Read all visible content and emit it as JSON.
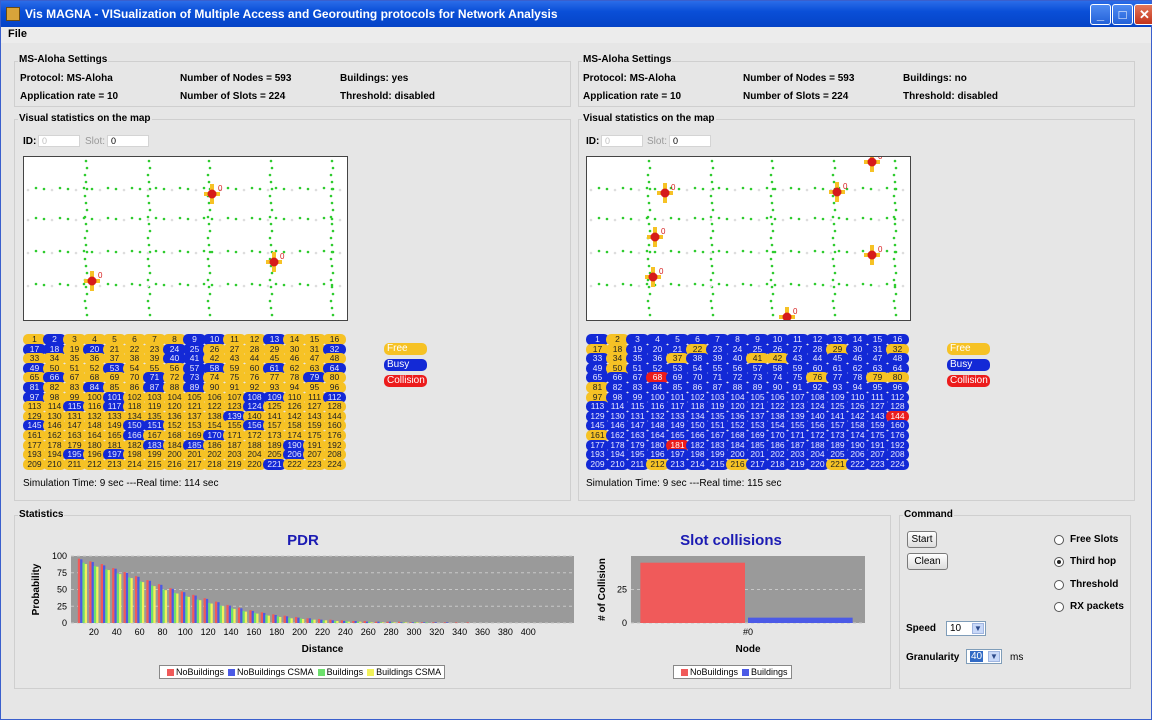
{
  "window": {
    "title": "Vis MAGNA - VISualization of Multiple Access and Georouting protocols for Network Analysis",
    "minimize_glyph": "_",
    "maximize_glyph": "□",
    "close_glyph": "✕"
  },
  "menu": {
    "file": "File"
  },
  "left": {
    "settings_title": "MS-Aloha Settings",
    "protocol": "Protocol: MS-Aloha",
    "nodes": "Number of Nodes = 593",
    "buildings": "Buildings: yes",
    "app_rate": "Application rate = 10",
    "slots": "Number of Slots = 224",
    "threshold": "Threshold: disabled",
    "visual_title": "Visual statistics on the map",
    "id_label": "ID:",
    "id_value": "0",
    "slot_label": "Slot:",
    "slot_value": "0",
    "sim_time": "Simulation Time: 9 sec ---Real time: 114 sec"
  },
  "right": {
    "settings_title": "MS-Aloha Settings",
    "protocol": "Protocol: MS-Aloha",
    "nodes": "Number of Nodes = 593",
    "buildings": "Buildings: no",
    "app_rate": "Application rate = 10",
    "slots": "Number of Slots = 224",
    "threshold": "Threshold: disabled",
    "visual_title": "Visual statistics on the map",
    "id_label": "ID:",
    "id_value": "0",
    "slot_label": "Slot:",
    "slot_value": "0",
    "sim_time": "Simulation Time: 9 sec ---Real time: 115 sec"
  },
  "slot_legend": {
    "free": "Free",
    "busy": "Busy",
    "collision": "Collision"
  },
  "slot_grid": {
    "count": 224,
    "left_states": "FBFFFFFFBBFFBFFFBBFBFFFBBFFFFFFBFFFFFFFBBFFFFFFFBFFFBFFFBBFFBFFBFBFFFFBFBFFFFFBFBFFBFFBFBFFFFFFFBFFFBFFFFFFBBFFBFFBFBFFFFFFBFFFFFFFFFFFFFFBFFFFFBFFFFBBFFFFBFFFFFFFFFBFFFBFFFFFFFFFFFFBFBFFFFBFFFFBFBFFFFFFFFBFFFFFFFFFFFFFFBFFFFFFFBBFBBFF",
    "right_states": "BFBBBBBBBBBBBBBBFFBBBFBBBBBBFBBFBFBBFBBBFFBBBBBBBFBBBBBBBBBBBBBBBBBCBBBBBBBFBBFFFBBBBBBBBBBBBBBBFBBBBBBBBBBBBBBBBBBBBBBBBBBBBBBBBBBBBBBBBBBBBBBCBBBBBBBBBBBBBBBBFBBBBBBBBBBBBBBBBBBBCBBBBBBBBBBBBBBBBBBBBBBBBBBBBBBFBBBFBBBBFBBBBBBBB"
  },
  "statistics": {
    "title": "Statistics",
    "pdr": {
      "title": "PDR",
      "ylabel": "Probability",
      "xlabel": "Distance",
      "legend": [
        "NoBuildings",
        "NoBuildings CSMA",
        "Buildings",
        "Buildings CSMA"
      ]
    },
    "collisions": {
      "title": "Slot collisions",
      "ylabel": "# of Collision",
      "xlabel": "Node",
      "legend": [
        "NoBuildings",
        "Buildings"
      ]
    }
  },
  "command": {
    "title": "Command",
    "start": "Start",
    "clean": "Clean",
    "radios": [
      {
        "label": "Free Slots",
        "checked": false
      },
      {
        "label": "Third hop",
        "checked": true
      },
      {
        "label": "Threshold",
        "checked": false
      },
      {
        "label": "RX packets",
        "checked": false
      }
    ],
    "speed_label": "Speed",
    "speed_value": "10",
    "granularity_label": "Granularity",
    "granularity_value": "40",
    "granularity_unit": "ms"
  },
  "colors": {
    "nobuildings": "#f05a5a",
    "nobuildings_csma": "#4b5ae6",
    "buildings": "#6de06d",
    "buildings_csma": "#f2f25a",
    "slot_free": "#f6c225",
    "slot_busy": "#1329d6",
    "slot_collision": "#ec1c1c",
    "title_blue": "#1b1bb3"
  },
  "chart_data": [
    {
      "type": "bar",
      "title": "PDR",
      "xlabel": "Distance",
      "ylabel": "Probability",
      "ylim": [
        0,
        100
      ],
      "yticks": [
        0,
        25,
        50,
        75,
        100
      ],
      "xticks": [
        20,
        40,
        60,
        80,
        100,
        120,
        140,
        160,
        180,
        200,
        220,
        240,
        260,
        280,
        300,
        320,
        340,
        360,
        380,
        400
      ],
      "categories": [
        10,
        20,
        30,
        40,
        50,
        60,
        70,
        80,
        90,
        100,
        110,
        120,
        130,
        140,
        150,
        160,
        170,
        180,
        190,
        200,
        210,
        220,
        230,
        240,
        250,
        260,
        270,
        280,
        290,
        300,
        310,
        320,
        330,
        340,
        350,
        360,
        370,
        380,
        390,
        400
      ],
      "series": [
        {
          "name": "NoBuildings",
          "values": [
            96,
            92,
            88,
            82,
            76,
            70,
            64,
            58,
            52,
            47,
            42,
            37,
            32,
            27,
            23,
            19,
            16,
            13,
            11,
            9,
            7,
            6,
            5,
            4,
            3,
            3,
            2,
            2,
            2,
            1,
            1,
            1,
            1,
            1,
            1,
            0,
            0,
            0,
            0,
            0
          ]
        },
        {
          "name": "NoBuildings CSMA",
          "values": [
            95,
            91,
            86,
            81,
            75,
            69,
            63,
            57,
            51,
            46,
            41,
            36,
            31,
            26,
            22,
            18,
            15,
            12,
            10,
            8,
            7,
            5,
            4,
            3,
            3,
            2,
            2,
            2,
            1,
            1,
            1,
            1,
            1,
            0,
            0,
            0,
            0,
            0,
            0,
            0
          ]
        },
        {
          "name": "Buildings",
          "values": [
            90,
            85,
            80,
            74,
            68,
            62,
            56,
            50,
            45,
            40,
            35,
            30,
            26,
            22,
            18,
            15,
            12,
            10,
            8,
            7,
            5,
            4,
            3,
            3,
            2,
            2,
            1,
            1,
            1,
            1,
            1,
            0,
            0,
            0,
            0,
            0,
            0,
            0,
            0,
            0
          ]
        },
        {
          "name": "Buildings CSMA",
          "values": [
            88,
            84,
            79,
            73,
            67,
            61,
            55,
            49,
            44,
            39,
            34,
            29,
            25,
            21,
            17,
            14,
            11,
            9,
            7,
            6,
            5,
            4,
            3,
            2,
            2,
            1,
            1,
            1,
            1,
            1,
            0,
            0,
            0,
            0,
            0,
            0,
            0,
            0,
            0,
            0
          ]
        }
      ]
    },
    {
      "type": "bar",
      "title": "Slot collisions",
      "xlabel": "Node",
      "ylabel": "# of Collision",
      "categories": [
        "#0"
      ],
      "yticks": [
        0,
        25
      ],
      "ylim": [
        0,
        50
      ],
      "series": [
        {
          "name": "NoBuildings",
          "values": [
            45
          ]
        },
        {
          "name": "Buildings",
          "values": [
            4
          ]
        }
      ]
    }
  ]
}
